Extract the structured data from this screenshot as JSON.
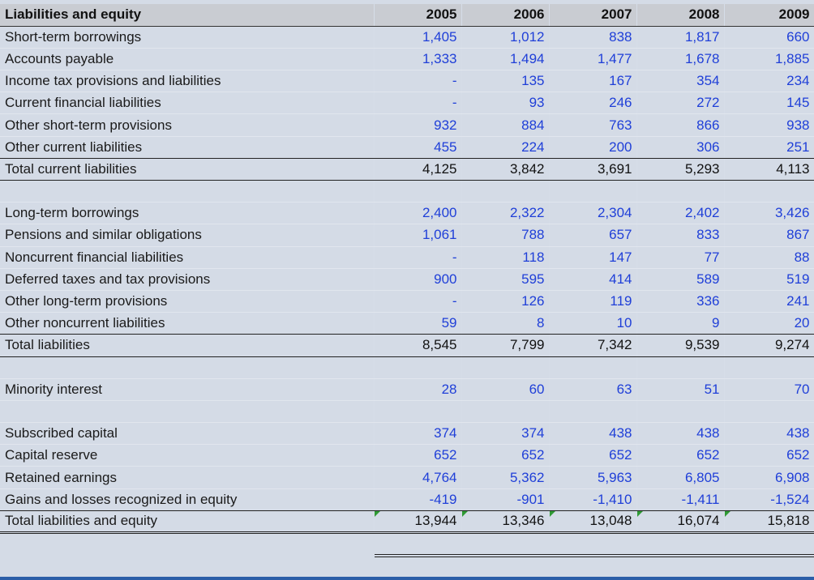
{
  "header": {
    "label": "Liabilities and equity",
    "years": [
      "2005",
      "2006",
      "2007",
      "2008",
      "2009"
    ]
  },
  "rows": [
    {
      "label": "Short-term borrowings",
      "values": [
        "1,405",
        "1,012",
        "838",
        "1,817",
        "660"
      ]
    },
    {
      "label": "Accounts payable",
      "values": [
        "1,333",
        "1,494",
        "1,477",
        "1,678",
        "1,885"
      ]
    },
    {
      "label": "Income tax provisions and liabilities",
      "values": [
        "-",
        "135",
        "167",
        "354",
        "234"
      ]
    },
    {
      "label": "Current financial liabilities",
      "values": [
        "-",
        "93",
        "246",
        "272",
        "145"
      ]
    },
    {
      "label": "Other short-term provisions",
      "values": [
        "932",
        "884",
        "763",
        "866",
        "938"
      ]
    },
    {
      "label": "Other current liabilities",
      "values": [
        "455",
        "224",
        "200",
        "306",
        "251"
      ]
    },
    {
      "label": "Total current liabilities",
      "values": [
        "4,125",
        "3,842",
        "3,691",
        "5,293",
        "4,113"
      ]
    },
    {
      "label": "",
      "values": [
        "",
        "",
        "",
        "",
        ""
      ]
    },
    {
      "label": "Long-term borrowings",
      "values": [
        "2,400",
        "2,322",
        "2,304",
        "2,402",
        "3,426"
      ]
    },
    {
      "label": "Pensions and similar obligations",
      "values": [
        "1,061",
        "788",
        "657",
        "833",
        "867"
      ]
    },
    {
      "label": "Noncurrent financial liabilities",
      "values": [
        "-",
        "118",
        "147",
        "77",
        "88"
      ]
    },
    {
      "label": "Deferred taxes and tax provisions",
      "values": [
        "900",
        "595",
        "414",
        "589",
        "519"
      ]
    },
    {
      "label": "Other long-term provisions",
      "values": [
        "-",
        "126",
        "119",
        "336",
        "241"
      ]
    },
    {
      "label": "Other noncurrent liabilities",
      "values": [
        "59",
        "8",
        "10",
        "9",
        "20"
      ]
    },
    {
      "label": "Total liabilities",
      "values": [
        "8,545",
        "7,799",
        "7,342",
        "9,539",
        "9,274"
      ]
    },
    {
      "label": "",
      "values": [
        "",
        "",
        "",
        "",
        ""
      ]
    },
    {
      "label": "Minority interest",
      "values": [
        "28",
        "60",
        "63",
        "51",
        "70"
      ]
    },
    {
      "label": "",
      "values": [
        "",
        "",
        "",
        "",
        ""
      ]
    },
    {
      "label": "Subscribed capital",
      "values": [
        "374",
        "374",
        "438",
        "438",
        "438"
      ]
    },
    {
      "label": "Capital reserve",
      "values": [
        "652",
        "652",
        "652",
        "652",
        "652"
      ]
    },
    {
      "label": "Retained earnings",
      "values": [
        "4,764",
        "5,362",
        "5,963",
        "6,805",
        "6,908"
      ]
    },
    {
      "label": "Gains and losses recognized in equity",
      "values": [
        "-419",
        "-901",
        "-1,410",
        "-1,411",
        "-1,524"
      ]
    },
    {
      "label": "Total liabilities and equity",
      "values": [
        "13,944",
        "13,346",
        "13,048",
        "16,074",
        "15,818"
      ]
    }
  ],
  "colors": {
    "number_text": "#1f3fd8",
    "header_bg": "#c9ccd2",
    "sheet_bg": "#e8eef7",
    "error_indicator": "#2f9a34"
  }
}
